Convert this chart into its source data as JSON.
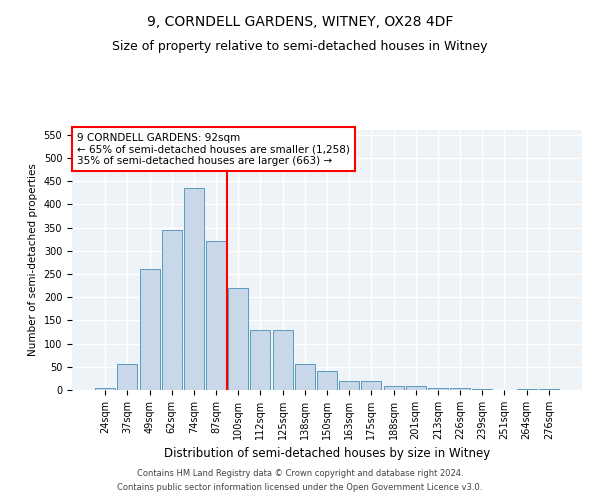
{
  "title1": "9, CORNDELL GARDENS, WITNEY, OX28 4DF",
  "title2": "Size of property relative to semi-detached houses in Witney",
  "xlabel": "Distribution of semi-detached houses by size in Witney",
  "ylabel": "Number of semi-detached properties",
  "categories": [
    "24sqm",
    "37sqm",
    "49sqm",
    "62sqm",
    "74sqm",
    "87sqm",
    "100sqm",
    "112sqm",
    "125sqm",
    "138sqm",
    "150sqm",
    "163sqm",
    "175sqm",
    "188sqm",
    "201sqm",
    "213sqm",
    "226sqm",
    "239sqm",
    "251sqm",
    "264sqm",
    "276sqm"
  ],
  "values": [
    5,
    55,
    260,
    345,
    435,
    320,
    220,
    130,
    130,
    55,
    40,
    20,
    20,
    8,
    8,
    5,
    5,
    3,
    0,
    3,
    3
  ],
  "bar_color": "#c8d8e8",
  "bar_edge_color": "#5a9abf",
  "vline_x": 5.5,
  "vline_color": "red",
  "annotation_text": "9 CORNDELL GARDENS: 92sqm\n← 65% of semi-detached houses are smaller (1,258)\n35% of semi-detached houses are larger (663) →",
  "annotation_box_color": "white",
  "annotation_box_edge_color": "red",
  "ylim": [
    0,
    560
  ],
  "yticks": [
    0,
    50,
    100,
    150,
    200,
    250,
    300,
    350,
    400,
    450,
    500,
    550
  ],
  "footer1": "Contains HM Land Registry data © Crown copyright and database right 2024.",
  "footer2": "Contains public sector information licensed under the Open Government Licence v3.0.",
  "bg_color": "#eef3f8",
  "grid_color": "white",
  "title1_fontsize": 10,
  "title2_fontsize": 9,
  "annot_fontsize": 7.5,
  "tick_fontsize": 7,
  "ylabel_fontsize": 7.5,
  "xlabel_fontsize": 8.5,
  "footer_fontsize": 6
}
